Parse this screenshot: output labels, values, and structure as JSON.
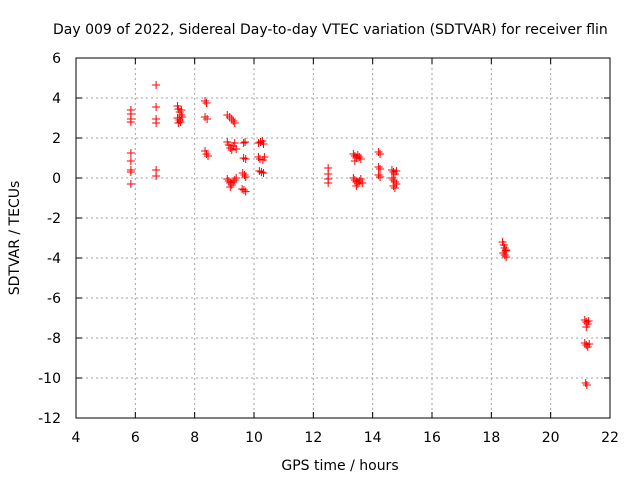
{
  "chart_data": {
    "type": "scatter",
    "title": "Day 009 of 2022, Sidereal Day-to-day VTEC variation (SDTVAR) for receiver flin",
    "xlabel": "GPS time / hours",
    "ylabel": "SDTVAR / TECUs",
    "xlim": [
      4,
      22
    ],
    "ylim": [
      -12,
      6
    ],
    "xticks": [
      "4",
      "6",
      "8",
      "10",
      "12",
      "14",
      "16",
      "18",
      "20",
      "22"
    ],
    "yticks": [
      "-12",
      "-10",
      "-8",
      "-6",
      "-4",
      "-2",
      "0",
      "2",
      "4",
      "6"
    ],
    "grid": true,
    "marker": "+",
    "color": "#ff0000",
    "series": [
      {
        "name": "SDTVAR",
        "points": [
          [
            5.85,
            3.4
          ],
          [
            5.85,
            3.2
          ],
          [
            5.85,
            2.95
          ],
          [
            5.85,
            2.8
          ],
          [
            5.85,
            1.25
          ],
          [
            5.85,
            0.85
          ],
          [
            5.85,
            0.4
          ],
          [
            5.85,
            0.3
          ],
          [
            5.85,
            -0.3
          ],
          [
            6.7,
            4.65
          ],
          [
            6.7,
            3.55
          ],
          [
            6.7,
            2.95
          ],
          [
            6.7,
            2.75
          ],
          [
            6.7,
            0.4
          ],
          [
            6.7,
            0.1
          ],
          [
            7.42,
            3.6
          ],
          [
            7.45,
            3.45
          ],
          [
            7.5,
            3.3
          ],
          [
            7.55,
            3.15
          ],
          [
            7.42,
            3.0
          ],
          [
            7.48,
            2.9
          ],
          [
            7.52,
            2.8
          ],
          [
            7.58,
            3.05
          ],
          [
            7.45,
            2.75
          ],
          [
            7.55,
            3.4
          ],
          [
            8.35,
            3.85
          ],
          [
            8.4,
            3.75
          ],
          [
            8.35,
            3.05
          ],
          [
            8.42,
            2.95
          ],
          [
            8.35,
            1.35
          ],
          [
            8.4,
            1.2
          ],
          [
            8.45,
            1.1
          ],
          [
            9.1,
            3.15
          ],
          [
            9.18,
            3.05
          ],
          [
            9.25,
            2.95
          ],
          [
            9.3,
            2.85
          ],
          [
            9.35,
            2.75
          ],
          [
            9.1,
            1.8
          ],
          [
            9.15,
            1.65
          ],
          [
            9.2,
            1.5
          ],
          [
            9.25,
            1.4
          ],
          [
            9.3,
            1.6
          ],
          [
            9.35,
            1.75
          ],
          [
            9.4,
            1.45
          ],
          [
            9.1,
            -0.05
          ],
          [
            9.15,
            -0.15
          ],
          [
            9.2,
            -0.25
          ],
          [
            9.25,
            -0.35
          ],
          [
            9.3,
            -0.2
          ],
          [
            9.35,
            -0.1
          ],
          [
            9.4,
            0.0
          ],
          [
            9.2,
            -0.45
          ],
          [
            9.65,
            1.75
          ],
          [
            9.7,
            1.8
          ],
          [
            9.65,
            1.0
          ],
          [
            9.72,
            0.95
          ],
          [
            9.62,
            0.25
          ],
          [
            9.68,
            0.15
          ],
          [
            9.72,
            0.05
          ],
          [
            9.6,
            -0.55
          ],
          [
            9.66,
            -0.6
          ],
          [
            9.72,
            -0.68
          ],
          [
            10.15,
            1.75
          ],
          [
            10.22,
            1.8
          ],
          [
            10.28,
            1.85
          ],
          [
            10.32,
            1.7
          ],
          [
            10.15,
            1.05
          ],
          [
            10.2,
            0.95
          ],
          [
            10.3,
            0.9
          ],
          [
            10.35,
            1.05
          ],
          [
            10.18,
            0.35
          ],
          [
            10.25,
            0.3
          ],
          [
            10.32,
            0.25
          ],
          [
            12.5,
            0.5
          ],
          [
            12.5,
            0.2
          ],
          [
            12.5,
            -0.05
          ],
          [
            12.5,
            -0.25
          ],
          [
            13.35,
            1.2
          ],
          [
            13.4,
            1.1
          ],
          [
            13.45,
            1.0
          ],
          [
            13.5,
            1.15
          ],
          [
            13.55,
            1.05
          ],
          [
            13.6,
            0.95
          ],
          [
            13.4,
            0.85
          ],
          [
            13.35,
            0.0
          ],
          [
            13.4,
            -0.1
          ],
          [
            13.45,
            -0.2
          ],
          [
            13.5,
            -0.3
          ],
          [
            13.55,
            -0.15
          ],
          [
            13.6,
            -0.05
          ],
          [
            13.65,
            -0.25
          ],
          [
            13.45,
            -0.4
          ],
          [
            14.2,
            1.3
          ],
          [
            14.25,
            1.2
          ],
          [
            14.2,
            0.55
          ],
          [
            14.25,
            0.45
          ],
          [
            14.2,
            0.15
          ],
          [
            14.25,
            0.05
          ],
          [
            14.65,
            0.4
          ],
          [
            14.7,
            0.3
          ],
          [
            14.75,
            0.2
          ],
          [
            14.8,
            0.35
          ],
          [
            14.65,
            0.0
          ],
          [
            14.7,
            -0.1
          ],
          [
            14.75,
            -0.2
          ],
          [
            14.8,
            -0.3
          ],
          [
            14.7,
            -0.4
          ],
          [
            14.75,
            -0.5
          ],
          [
            18.38,
            -3.2
          ],
          [
            18.42,
            -3.35
          ],
          [
            18.45,
            -3.5
          ],
          [
            18.5,
            -3.6
          ],
          [
            18.4,
            -3.75
          ],
          [
            18.45,
            -3.85
          ],
          [
            18.5,
            -3.95
          ],
          [
            18.48,
            -3.65
          ],
          [
            21.15,
            -7.1
          ],
          [
            21.2,
            -7.2
          ],
          [
            21.25,
            -7.3
          ],
          [
            21.2,
            -7.45
          ],
          [
            21.28,
            -7.15
          ],
          [
            21.15,
            -8.25
          ],
          [
            21.2,
            -8.35
          ],
          [
            21.25,
            -8.45
          ],
          [
            21.3,
            -8.3
          ],
          [
            21.18,
            -10.25
          ],
          [
            21.22,
            -10.35
          ]
        ]
      }
    ]
  }
}
